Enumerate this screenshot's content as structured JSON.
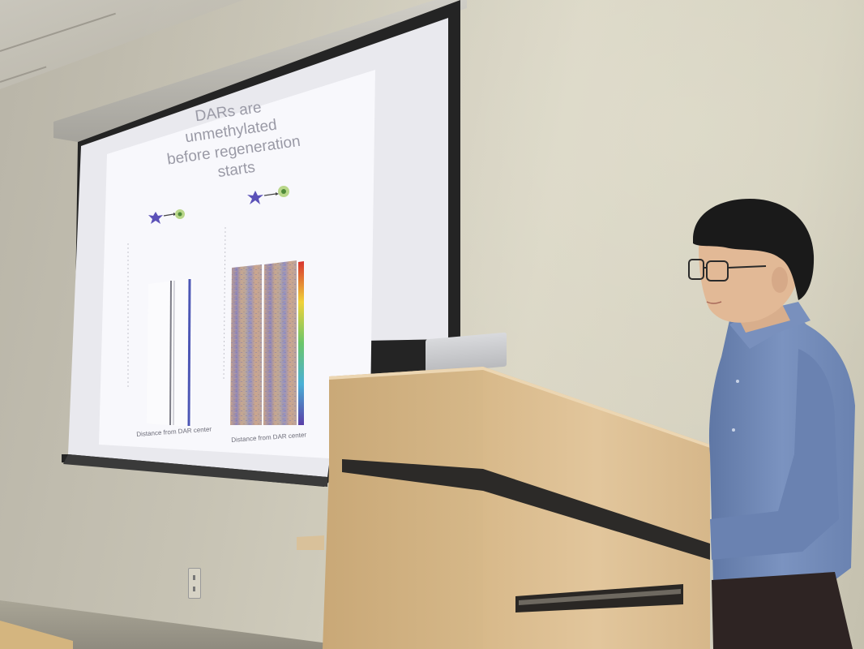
{
  "scene": "presentation-room",
  "slide": {
    "title_line1": "DARs are unmethylated",
    "title_line2": "before regeneration starts",
    "left_panel_caption": "Distance from DAR center",
    "right_panel_caption": "Distance from DAR center"
  },
  "colors": {
    "wall": "#d3cfbd",
    "screen_border": "#262626",
    "slide_background": "#f7f7fb",
    "podium_wood": "#d9bb8c",
    "shirt": "#6f86b3",
    "hair": "#1a1a1a"
  },
  "icons": [
    "neuron-icon",
    "arrow-icon",
    "cell-icon"
  ]
}
